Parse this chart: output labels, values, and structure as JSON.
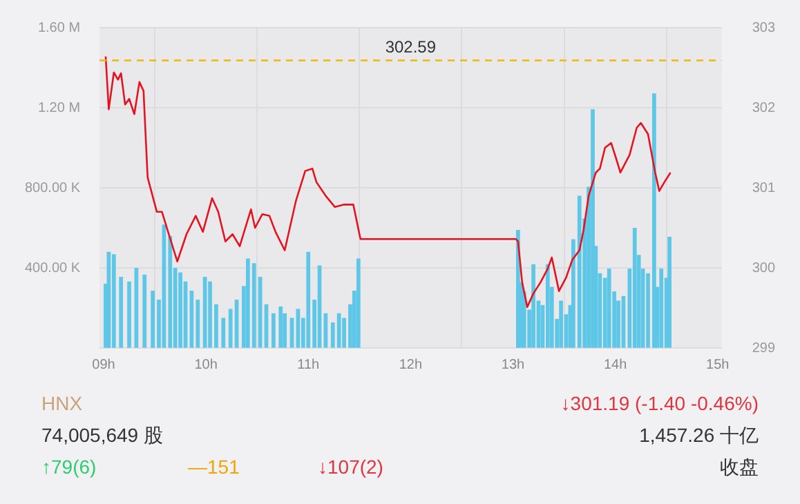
{
  "chart_data": {
    "type": "bar",
    "xlim": [
      8.96,
      15.04
    ],
    "xticks": [
      {
        "value": 9,
        "label": "09h"
      },
      {
        "value": 10,
        "label": "10h"
      },
      {
        "value": 11,
        "label": "11h"
      },
      {
        "value": 12,
        "label": "12h"
      },
      {
        "value": 13,
        "label": "13h"
      },
      {
        "value": 14,
        "label": "14h"
      },
      {
        "value": 15,
        "label": "15h"
      }
    ],
    "ylim": [
      0,
      1600000
    ],
    "yticks": [
      {
        "value": 0,
        "label": null
      },
      {
        "value": 400000,
        "label": "400.00 K"
      },
      {
        "value": 800000,
        "label": "800.00 K"
      },
      {
        "value": 1200000,
        "label": "1.20 M"
      },
      {
        "value": 1600000,
        "label": "1.60 M"
      }
    ],
    "y2lim": [
      299,
      303
    ],
    "y2ticks": [
      299,
      300,
      301,
      302,
      303
    ],
    "grid": true,
    "legend": false,
    "series": [
      {
        "color": "#5ec6e6",
        "axis": "y",
        "x": [
          9.02,
          9.05,
          9.1,
          9.17,
          9.25,
          9.32,
          9.4,
          9.48,
          9.54,
          9.59,
          9.65,
          9.7,
          9.75,
          9.8,
          9.86,
          9.92,
          9.99,
          10.04,
          10.1,
          10.17,
          10.24,
          10.3,
          10.37,
          10.41,
          10.47,
          10.53,
          10.59,
          10.66,
          10.73,
          10.77,
          10.84,
          10.9,
          10.95,
          11.0,
          11.06,
          11.11,
          11.17,
          11.24,
          11.3,
          11.35,
          11.41,
          11.45,
          11.49,
          13.05,
          13.08,
          13.11,
          13.16,
          13.2,
          13.25,
          13.29,
          13.34,
          13.38,
          13.43,
          13.47,
          13.52,
          13.56,
          13.59,
          13.65,
          13.7,
          13.74,
          13.78,
          13.81,
          13.85,
          13.9,
          13.94,
          13.99,
          14.03,
          14.08,
          14.14,
          14.19,
          14.23,
          14.27,
          14.32,
          14.38,
          14.41,
          14.45,
          14.5,
          14.53
        ],
        "values": [
          318000,
          478000,
          466000,
          353000,
          330000,
          398000,
          364000,
          284000,
          239000,
          614000,
          557000,
          398000,
          375000,
          330000,
          284000,
          239000,
          353000,
          330000,
          216000,
          148000,
          193000,
          239000,
          307000,
          444000,
          421000,
          353000,
          216000,
          171000,
          205000,
          171000,
          148000,
          193000,
          148000,
          478000,
          239000,
          410000,
          171000,
          125000,
          171000,
          148000,
          216000,
          284000,
          444000,
          587000,
          325000,
          280000,
          189000,
          416000,
          234000,
          212000,
          416000,
          303000,
          143000,
          234000,
          166000,
          212000,
          541000,
          758000,
          644000,
          803000,
          1190000,
          507000,
          371000,
          348000,
          394000,
          280000,
          234000,
          257000,
          394000,
          598000,
          462000,
          394000,
          371000,
          1269000,
          303000,
          394000,
          348000,
          553000
        ]
      },
      {
        "type": "line",
        "color": "#e4131f",
        "axis": "y2",
        "marker": "none",
        "line_style": "solid",
        "x": [
          9.02,
          9.05,
          9.1,
          9.14,
          9.17,
          9.21,
          9.25,
          9.3,
          9.35,
          9.39,
          9.43,
          9.52,
          9.57,
          9.63,
          9.72,
          9.81,
          9.9,
          9.97,
          10.06,
          10.12,
          10.19,
          10.26,
          10.33,
          10.44,
          10.48,
          10.55,
          10.62,
          10.68,
          10.77,
          10.88,
          10.97,
          11.04,
          11.08,
          11.17,
          11.26,
          11.35,
          11.44,
          11.51,
          13.03,
          13.05,
          13.09,
          13.14,
          13.2,
          13.27,
          13.34,
          13.38,
          13.45,
          13.52,
          13.58,
          13.65,
          13.69,
          13.74,
          13.81,
          13.85,
          13.9,
          13.96,
          14.01,
          14.05,
          14.14,
          14.21,
          14.25,
          14.32,
          14.39,
          14.43,
          14.48,
          14.54
        ],
        "values": [
          302.64,
          301.98,
          302.44,
          302.35,
          302.43,
          302.04,
          302.11,
          301.92,
          302.32,
          302.21,
          301.13,
          300.7,
          300.7,
          300.45,
          300.08,
          300.42,
          300.65,
          300.45,
          300.87,
          300.7,
          300.33,
          300.42,
          300.27,
          300.73,
          300.5,
          300.67,
          300.65,
          300.45,
          300.22,
          300.84,
          301.21,
          301.24,
          301.07,
          300.9,
          300.76,
          300.79,
          300.79,
          300.36,
          300.36,
          300.33,
          299.82,
          299.51,
          299.68,
          299.82,
          299.99,
          300.13,
          299.71,
          299.88,
          300.1,
          300.22,
          300.47,
          300.9,
          301.19,
          301.24,
          301.5,
          301.56,
          301.36,
          301.19,
          301.41,
          301.75,
          301.81,
          301.67,
          301.19,
          300.96,
          301.07,
          301.19
        ]
      }
    ],
    "ref_lines": [
      {
        "axis": "y2",
        "value": 302.59,
        "label": "302.59",
        "color": "#f2b705",
        "line_style": "dashed"
      }
    ],
    "annotations": [
      "HNX",
      "↓301.19 (-1.40 -0.46%)",
      "74,005,649 股",
      "1,457.26 十亿",
      "↑79(6)",
      "—151",
      "↓107(2)",
      "收盘"
    ]
  }
}
